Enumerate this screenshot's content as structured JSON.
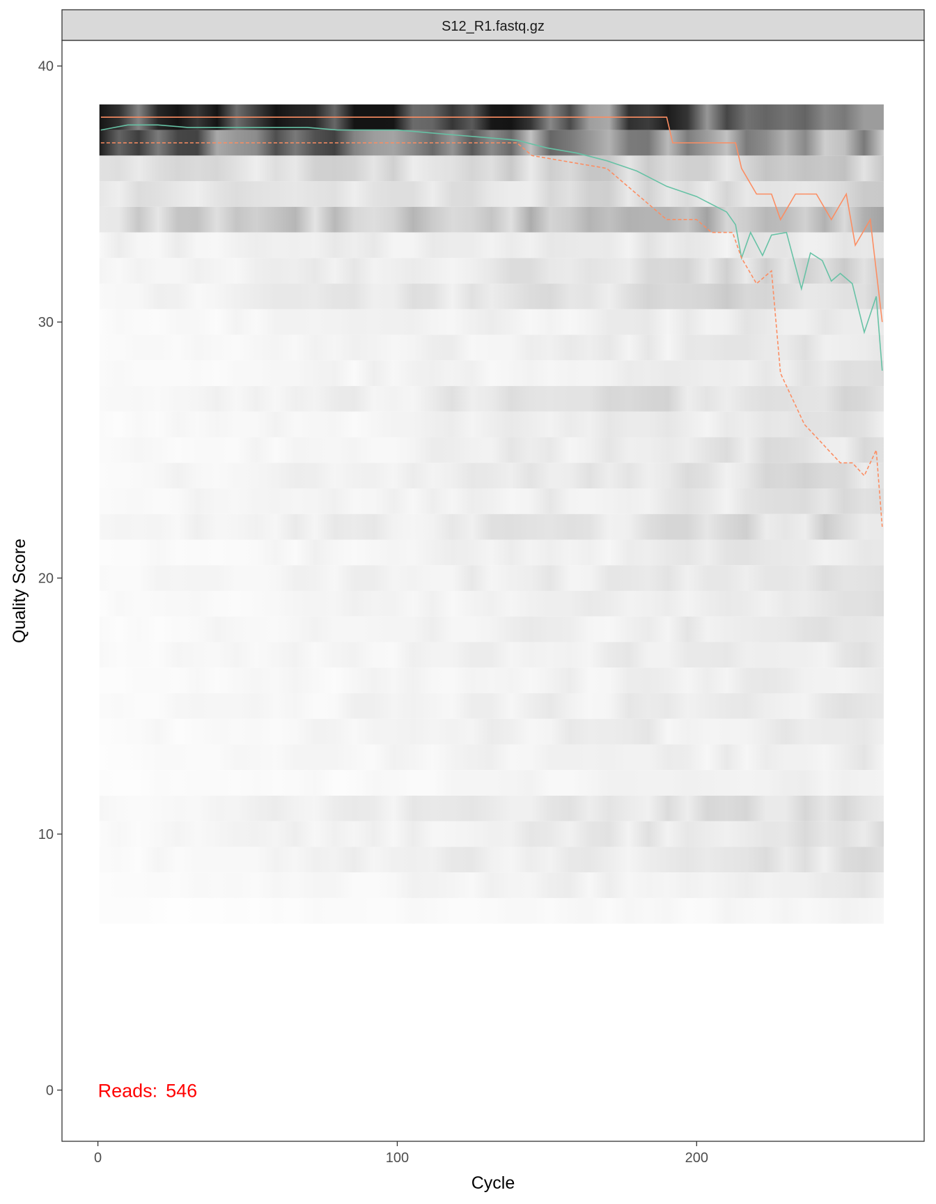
{
  "chart_data": {
    "type": "heatmap",
    "facet_label": "S12_R1.fastq.gz",
    "xlabel": "Cycle",
    "ylabel": "Quality Score",
    "xlim": [
      -12,
      276
    ],
    "ylim": [
      -2,
      41
    ],
    "x_ticks": [
      0,
      100,
      200
    ],
    "y_ticks": [
      0,
      10,
      20,
      30,
      40
    ],
    "annotation": {
      "label": "Reads:",
      "count": "546",
      "color": "#ff0000",
      "x": 0,
      "y": 0
    },
    "cycles": [
      1,
      262
    ],
    "quality_bands": [
      {
        "q": 38,
        "shade": 0.96
      },
      {
        "q": 37,
        "shade": 0.68
      },
      {
        "q": 36,
        "shade": 0.14
      },
      {
        "q": 35,
        "shade": 0.12
      },
      {
        "q": 34,
        "shade": 0.22
      },
      {
        "q": 33,
        "shade": 0.07
      },
      {
        "q": 32,
        "shade": 0.08
      },
      {
        "q": 31,
        "shade": 0.09
      },
      {
        "q": 30,
        "shade": 0.05
      },
      {
        "q": 29,
        "shade": 0.05
      },
      {
        "q": 28,
        "shade": 0.05
      },
      {
        "q": 27,
        "shade": 0.08
      },
      {
        "q": 26,
        "shade": 0.05
      },
      {
        "q": 25,
        "shade": 0.06
      },
      {
        "q": 24,
        "shade": 0.07
      },
      {
        "q": 23,
        "shade": 0.06
      },
      {
        "q": 22,
        "shade": 0.08
      },
      {
        "q": 21,
        "shade": 0.05
      },
      {
        "q": 20,
        "shade": 0.06
      },
      {
        "q": 19,
        "shade": 0.05
      },
      {
        "q": 18,
        "shade": 0.05
      },
      {
        "q": 17,
        "shade": 0.05
      },
      {
        "q": 16,
        "shade": 0.04
      },
      {
        "q": 15,
        "shade": 0.05
      },
      {
        "q": 14,
        "shade": 0.05
      },
      {
        "q": 13,
        "shade": 0.04
      },
      {
        "q": 12,
        "shade": 0.03
      },
      {
        "q": 11,
        "shade": 0.07
      },
      {
        "q": 10,
        "shade": 0.06
      },
      {
        "q": 9,
        "shade": 0.06
      },
      {
        "q": 8,
        "shade": 0.04
      },
      {
        "q": 7,
        "shade": 0.02
      }
    ],
    "series": [
      {
        "color": "#66c2a5",
        "style": "solid",
        "points": [
          [
            1,
            37.5
          ],
          [
            10,
            37.7
          ],
          [
            20,
            37.7
          ],
          [
            30,
            37.6
          ],
          [
            40,
            37.6
          ],
          [
            50,
            37.6
          ],
          [
            60,
            37.6
          ],
          [
            70,
            37.6
          ],
          [
            80,
            37.5
          ],
          [
            90,
            37.5
          ],
          [
            100,
            37.5
          ],
          [
            110,
            37.4
          ],
          [
            120,
            37.3
          ],
          [
            130,
            37.2
          ],
          [
            140,
            37.1
          ],
          [
            150,
            36.8
          ],
          [
            160,
            36.6
          ],
          [
            170,
            36.3
          ],
          [
            175,
            36.1
          ],
          [
            180,
            35.9
          ],
          [
            185,
            35.6
          ],
          [
            190,
            35.3
          ],
          [
            195,
            35.1
          ],
          [
            200,
            34.9
          ],
          [
            205,
            34.6
          ],
          [
            210,
            34.3
          ],
          [
            213,
            33.8
          ],
          [
            215,
            32.5
          ],
          [
            218,
            33.5
          ],
          [
            222,
            32.6
          ],
          [
            225,
            33.4
          ],
          [
            230,
            33.5
          ],
          [
            235,
            31.3
          ],
          [
            238,
            32.7
          ],
          [
            242,
            32.4
          ],
          [
            245,
            31.6
          ],
          [
            248,
            31.9
          ],
          [
            252,
            31.5
          ],
          [
            256,
            29.6
          ],
          [
            260,
            31.0
          ],
          [
            262,
            28.1
          ]
        ]
      },
      {
        "color": "#fc8d62",
        "style": "solid",
        "points": [
          [
            1,
            38
          ],
          [
            190,
            38
          ],
          [
            192,
            37
          ],
          [
            213,
            37
          ],
          [
            215,
            36
          ],
          [
            220,
            35
          ],
          [
            225,
            35
          ],
          [
            228,
            34
          ],
          [
            233,
            35
          ],
          [
            240,
            35
          ],
          [
            245,
            34
          ],
          [
            250,
            35
          ],
          [
            253,
            33
          ],
          [
            258,
            34
          ],
          [
            262,
            30
          ]
        ]
      },
      {
        "color": "#fc8d62",
        "style": "dashed",
        "points": [
          [
            1,
            37
          ],
          [
            140,
            37
          ],
          [
            145,
            36.5
          ],
          [
            170,
            36
          ],
          [
            175,
            35.5
          ],
          [
            185,
            34.5
          ],
          [
            190,
            34.0
          ],
          [
            200,
            34.0
          ],
          [
            205,
            33.5
          ],
          [
            212,
            33.5
          ],
          [
            215,
            32.5
          ],
          [
            220,
            31.5
          ],
          [
            225,
            32.0
          ],
          [
            228,
            28.0
          ],
          [
            232,
            27.0
          ],
          [
            236,
            26.0
          ],
          [
            240,
            25.5
          ],
          [
            244,
            25.0
          ],
          [
            248,
            24.5
          ],
          [
            252,
            24.5
          ],
          [
            256,
            24.0
          ],
          [
            260,
            25.0
          ],
          [
            262,
            22.0
          ]
        ]
      }
    ]
  }
}
